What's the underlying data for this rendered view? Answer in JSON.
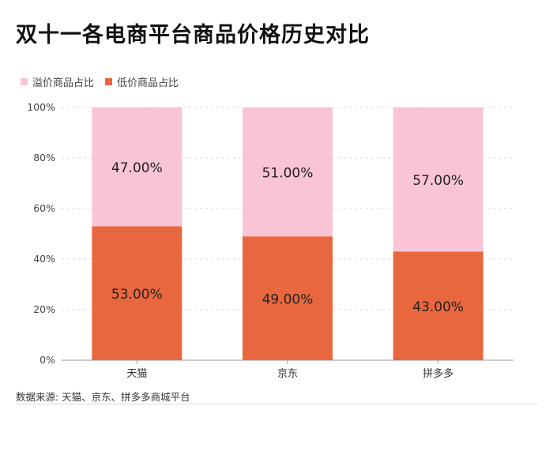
{
  "title": "双十一各电商平台商品价格历史对比",
  "source": "数据来源: 天猫、京东、拼多多商城平台",
  "chart_data": {
    "type": "bar",
    "stacked": true,
    "categories": [
      "天猫",
      "京东",
      "拼多多"
    ],
    "series": [
      {
        "name": "低价商品占比",
        "values": [
          53.0,
          49.0,
          43.0
        ],
        "labels": [
          "53.00%",
          "49.00%",
          "43.00%"
        ],
        "color": "#e9673f"
      },
      {
        "name": "溢价商品占比",
        "values": [
          47.0,
          51.0,
          57.0
        ],
        "labels": [
          "47.00%",
          "51.00%",
          "57.00%"
        ],
        "color": "#f9c4d6"
      }
    ],
    "legend_order": [
      "溢价商品占比",
      "低价商品占比"
    ],
    "y_ticks": [
      "0%",
      "20%",
      "40%",
      "60%",
      "80%",
      "100%"
    ],
    "ylim": [
      0,
      100
    ],
    "grid": true,
    "legend_position": "top-left"
  }
}
